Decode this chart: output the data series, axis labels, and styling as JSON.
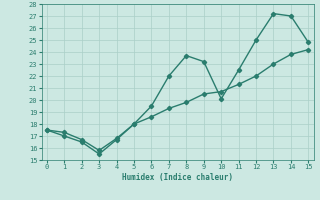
{
  "xlabel": "Humidex (Indice chaleur)",
  "x_data": [
    0,
    1,
    2,
    3,
    4,
    5,
    6,
    7,
    8,
    9,
    10,
    11,
    12,
    13,
    14,
    15
  ],
  "y_main": [
    17.5,
    17.0,
    16.5,
    15.5,
    16.7,
    18.0,
    19.5,
    22.0,
    23.7,
    23.2,
    20.1,
    22.5,
    25.0,
    27.2,
    27.0,
    24.8
  ],
  "y_trend": [
    17.5,
    17.3,
    16.7,
    15.8,
    16.8,
    18.0,
    18.6,
    19.3,
    19.8,
    20.5,
    20.7,
    21.3,
    22.0,
    23.0,
    23.8,
    24.2
  ],
  "ylim": [
    15,
    28
  ],
  "xlim": [
    -0.3,
    15.3
  ],
  "yticks": [
    15,
    16,
    17,
    18,
    19,
    20,
    21,
    22,
    23,
    24,
    25,
    26,
    27,
    28
  ],
  "xticks": [
    0,
    1,
    2,
    3,
    4,
    5,
    6,
    7,
    8,
    9,
    10,
    11,
    12,
    13,
    14,
    15
  ],
  "line_color": "#2a7d6e",
  "bg_color": "#cce8e2",
  "grid_color": "#aacfc8",
  "marker": "D",
  "marker_size": 2.2,
  "line_width": 1.0
}
